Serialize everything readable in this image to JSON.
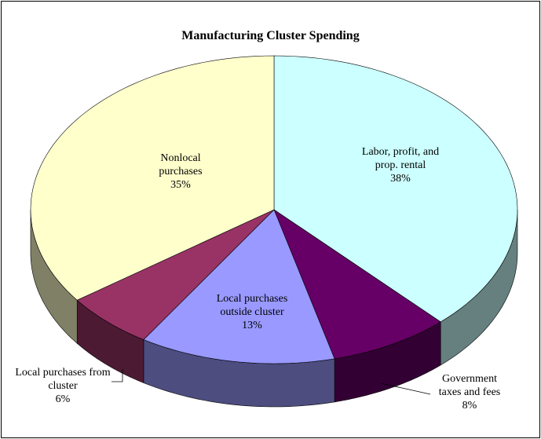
{
  "chart_data": {
    "type": "pie",
    "title": "Manufacturing Cluster Spending",
    "categories": [
      "Labor, profit, and prop. rental",
      "Government taxes and fees",
      "Local purchases outside cluster",
      "Local purchases from cluster",
      "Nonlocal purchases"
    ],
    "values": [
      38,
      8,
      13,
      6,
      35
    ],
    "value_labels": [
      "38%",
      "8%",
      "13%",
      "6%",
      "35%"
    ],
    "colors": [
      "#ccffff",
      "#660066",
      "#9999ff",
      "#993366",
      "#ffffcc"
    ]
  }
}
